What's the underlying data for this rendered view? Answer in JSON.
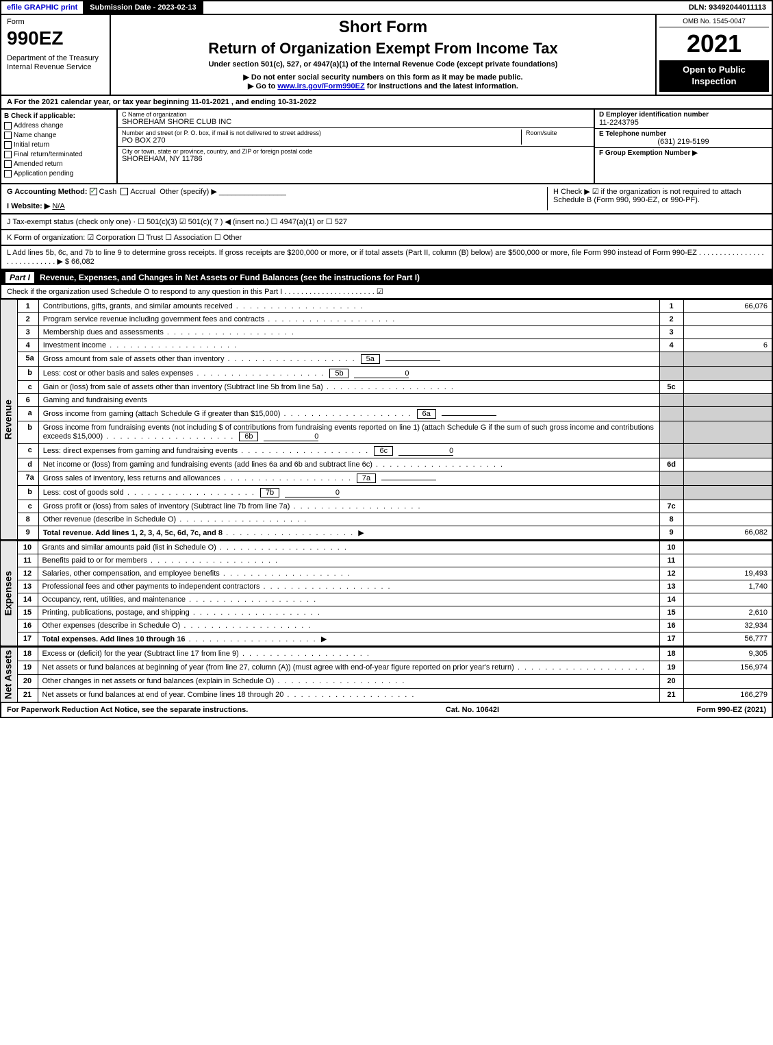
{
  "topbar": {
    "efile": "efile GRAPHIC print",
    "submission": "Submission Date - 2023-02-13",
    "dln": "DLN: 93492044011113"
  },
  "header": {
    "form_word": "Form",
    "form_num": "990EZ",
    "dept": "Department of the Treasury",
    "irs": "Internal Revenue Service",
    "short": "Short Form",
    "main": "Return of Organization Exempt From Income Tax",
    "sub": "Under section 501(c), 527, or 4947(a)(1) of the Internal Revenue Code (except private foundations)",
    "note1": "▶ Do not enter social security numbers on this form as it may be made public.",
    "note2_pre": "▶ Go to ",
    "note2_link": "www.irs.gov/Form990EZ",
    "note2_post": " for instructions and the latest information.",
    "omb": "OMB No. 1545-0047",
    "year": "2021",
    "open": "Open to Public Inspection"
  },
  "sectionA": "A  For the 2021 calendar year, or tax year beginning 11-01-2021 , and ending 10-31-2022",
  "B": {
    "title": "B  Check if applicable:",
    "addr": "Address change",
    "name": "Name change",
    "init": "Initial return",
    "final": "Final return/terminated",
    "amend": "Amended return",
    "app": "Application pending"
  },
  "C": {
    "name_lbl": "C Name of organization",
    "name": "SHOREHAM SHORE CLUB INC",
    "street_lbl": "Number and street (or P. O. box, if mail is not delivered to street address)",
    "room_lbl": "Room/suite",
    "street": "PO BOX 270",
    "city_lbl": "City or town, state or province, country, and ZIP or foreign postal code",
    "city": "SHOREHAM, NY  11786"
  },
  "D": {
    "ein_lbl": "D Employer identification number",
    "ein": "11-2243795",
    "tel_lbl": "E Telephone number",
    "tel": "(631) 219-5199",
    "grp_lbl": "F Group Exemption Number  ▶"
  },
  "G": {
    "label": "G Accounting Method:",
    "cash": "Cash",
    "accrual": "Accrual",
    "other": "Other (specify) ▶"
  },
  "H": "H  Check ▶ ☑ if the organization is not required to attach Schedule B (Form 990, 990-EZ, or 990-PF).",
  "I": {
    "label": "I Website: ▶",
    "val": "N/A"
  },
  "J": "J Tax-exempt status (check only one) ·  ☐ 501(c)(3)  ☑ 501(c)( 7 ) ◀ (insert no.)  ☐ 4947(a)(1) or  ☐ 527",
  "K": "K Form of organization:  ☑ Corporation  ☐ Trust  ☐ Association  ☐ Other",
  "L": {
    "text": "L Add lines 5b, 6c, and 7b to line 9 to determine gross receipts. If gross receipts are $200,000 or more, or if total assets (Part II, column (B) below) are $500,000 or more, file Form 990 instead of Form 990-EZ  . . . . . . . . . . . . . . . . . . . . . . . . . . . .   ▶ $",
    "amt": "66,082"
  },
  "partI": {
    "tab": "Part I",
    "title": "Revenue, Expenses, and Changes in Net Assets or Fund Balances (see the instructions for Part I)",
    "check": "Check if the organization used Schedule O to respond to any question in this Part I . . . . . . . . . . . . . . . . . . . . . .  ☑"
  },
  "sideLabels": {
    "rev": "Revenue",
    "exp": "Expenses",
    "net": "Net Assets"
  },
  "rows": [
    {
      "n": "1",
      "d": "Contributions, gifts, grants, and similar amounts received",
      "ln": "1",
      "a": "66,076"
    },
    {
      "n": "2",
      "d": "Program service revenue including government fees and contracts",
      "ln": "2",
      "a": ""
    },
    {
      "n": "3",
      "d": "Membership dues and assessments",
      "ln": "3",
      "a": ""
    },
    {
      "n": "4",
      "d": "Investment income",
      "ln": "4",
      "a": "6"
    },
    {
      "n": "5a",
      "d": "Gross amount from sale of assets other than inventory",
      "inl": "5a",
      "iv": ""
    },
    {
      "n": "b",
      "d": "Less: cost or other basis and sales expenses",
      "inl": "5b",
      "iv": "0"
    },
    {
      "n": "c",
      "d": "Gain or (loss) from sale of assets other than inventory (Subtract line 5b from line 5a)",
      "ln": "5c",
      "a": ""
    },
    {
      "n": "6",
      "d": "Gaming and fundraising events"
    },
    {
      "n": "a",
      "d": "Gross income from gaming (attach Schedule G if greater than $15,000)",
      "inl": "6a",
      "iv": ""
    },
    {
      "n": "b",
      "d": "Gross income from fundraising events (not including $                     of contributions from fundraising events reported on line 1) (attach Schedule G if the sum of such gross income and contributions exceeds $15,000)",
      "inl": "6b",
      "iv": "0"
    },
    {
      "n": "c",
      "d": "Less: direct expenses from gaming and fundraising events",
      "inl": "6c",
      "iv": "0"
    },
    {
      "n": "d",
      "d": "Net income or (loss) from gaming and fundraising events (add lines 6a and 6b and subtract line 6c)",
      "ln": "6d",
      "a": ""
    },
    {
      "n": "7a",
      "d": "Gross sales of inventory, less returns and allowances",
      "inl": "7a",
      "iv": ""
    },
    {
      "n": "b",
      "d": "Less: cost of goods sold",
      "inl": "7b",
      "iv": "0"
    },
    {
      "n": "c",
      "d": "Gross profit or (loss) from sales of inventory (Subtract line 7b from line 7a)",
      "ln": "7c",
      "a": ""
    },
    {
      "n": "8",
      "d": "Other revenue (describe in Schedule O)",
      "ln": "8",
      "a": ""
    },
    {
      "n": "9",
      "d": "Total revenue. Add lines 1, 2, 3, 4, 5c, 6d, 7c, and 8",
      "ln": "9",
      "a": "66,082",
      "b": true,
      "arrow": true
    }
  ],
  "exp_rows": [
    {
      "n": "10",
      "d": "Grants and similar amounts paid (list in Schedule O)",
      "ln": "10",
      "a": ""
    },
    {
      "n": "11",
      "d": "Benefits paid to or for members",
      "ln": "11",
      "a": ""
    },
    {
      "n": "12",
      "d": "Salaries, other compensation, and employee benefits",
      "ln": "12",
      "a": "19,493"
    },
    {
      "n": "13",
      "d": "Professional fees and other payments to independent contractors",
      "ln": "13",
      "a": "1,740"
    },
    {
      "n": "14",
      "d": "Occupancy, rent, utilities, and maintenance",
      "ln": "14",
      "a": ""
    },
    {
      "n": "15",
      "d": "Printing, publications, postage, and shipping",
      "ln": "15",
      "a": "2,610"
    },
    {
      "n": "16",
      "d": "Other expenses (describe in Schedule O)",
      "ln": "16",
      "a": "32,934"
    },
    {
      "n": "17",
      "d": "Total expenses. Add lines 10 through 16",
      "ln": "17",
      "a": "56,777",
      "b": true,
      "arrow": true
    }
  ],
  "net_rows": [
    {
      "n": "18",
      "d": "Excess or (deficit) for the year (Subtract line 17 from line 9)",
      "ln": "18",
      "a": "9,305"
    },
    {
      "n": "19",
      "d": "Net assets or fund balances at beginning of year (from line 27, column (A)) (must agree with end-of-year figure reported on prior year's return)",
      "ln": "19",
      "a": "156,974"
    },
    {
      "n": "20",
      "d": "Other changes in net assets or fund balances (explain in Schedule O)",
      "ln": "20",
      "a": ""
    },
    {
      "n": "21",
      "d": "Net assets or fund balances at end of year. Combine lines 18 through 20",
      "ln": "21",
      "a": "166,279"
    }
  ],
  "footer": {
    "left": "For Paperwork Reduction Act Notice, see the separate instructions.",
    "mid": "Cat. No. 10642I",
    "right": "Form 990-EZ (2021)"
  }
}
